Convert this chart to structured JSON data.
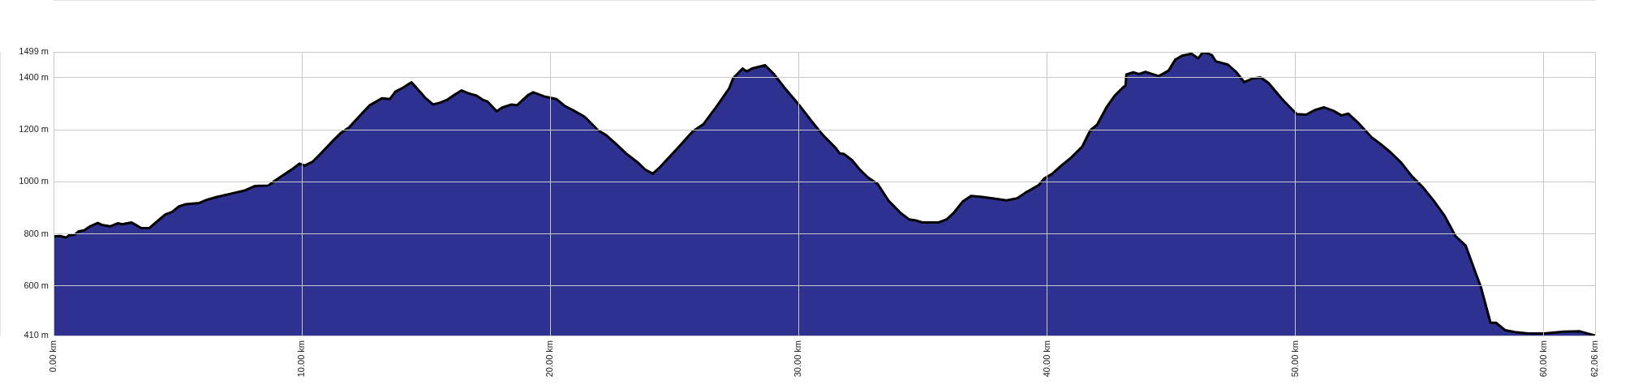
{
  "chart_data": {
    "type": "area",
    "color": "#2e3190",
    "marker": "none",
    "grid": true,
    "xlim": [
      0,
      62.06
    ],
    "ylim": [
      410,
      1499
    ],
    "xticks": [
      {
        "value": 0,
        "label": "0.00 km"
      },
      {
        "value": 10,
        "label": "10.00 km"
      },
      {
        "value": 20,
        "label": "20.00 km"
      },
      {
        "value": 30,
        "label": "30.00 km"
      },
      {
        "value": 40,
        "label": "40.00 km"
      },
      {
        "value": 50,
        "label": "50.00 km"
      },
      {
        "value": 60,
        "label": "60.00 km"
      },
      {
        "value": 62.06,
        "label": "62.06 km"
      }
    ],
    "yticks": [
      {
        "value": 410,
        "label": "410 m"
      },
      {
        "value": 600,
        "label": "600 m"
      },
      {
        "value": 800,
        "label": "800 m"
      },
      {
        "value": 1000,
        "label": "1000 m"
      },
      {
        "value": 1200,
        "label": "1200 m"
      },
      {
        "value": 1400,
        "label": "1400 m"
      },
      {
        "value": 1499,
        "label": "1499 m"
      }
    ],
    "x": [
      0,
      0.25,
      0.52,
      0.63,
      0.85,
      1.01,
      1.23,
      1.45,
      1.78,
      1.94,
      2.27,
      2.6,
      2.76,
      3.14,
      3.3,
      3.52,
      3.85,
      4.12,
      4.5,
      4.78,
      5.05,
      5.32,
      5.87,
      6.14,
      6.58,
      7.12,
      7.67,
      8.1,
      8.65,
      8.92,
      9.63,
      9.9,
      10.11,
      10.44,
      10.71,
      11.25,
      11.58,
      11.91,
      12.34,
      12.73,
      13.22,
      13.54,
      13.76,
      14.08,
      14.41,
      14.63,
      14.96,
      15.28,
      15.56,
      15.83,
      16.15,
      16.43,
      16.7,
      17.03,
      17.3,
      17.46,
      17.84,
      18.06,
      18.44,
      18.66,
      19.1,
      19.31,
      19.75,
      20.24,
      20.57,
      20.95,
      21.38,
      21.92,
      22.25,
      22.62,
      23.05,
      23.5,
      23.82,
      24.12,
      24.42,
      25.08,
      25.73,
      26.16,
      26.71,
      27.2,
      27.36,
      27.74,
      27.9,
      28.12,
      28.45,
      28.64,
      28.99,
      29.42,
      30,
      30.51,
      30.95,
      31.49,
      31.65,
      31.82,
      32.15,
      32.47,
      32.8,
      33.18,
      33.62,
      34.11,
      34.44,
      34.71,
      34.98,
      35.63,
      35.96,
      36.23,
      36.61,
      36.94,
      37.38,
      37.92,
      38.36,
      38.79,
      39.12,
      39.66,
      39.88,
      40.21,
      40.54,
      40.98,
      41.41,
      41.74,
      42.01,
      42.39,
      42.72,
      43.05,
      43.16,
      43.19,
      43.47,
      43.69,
      43.96,
      44.23,
      44.5,
      44.89,
      45.16,
      45.43,
      45.81,
      46.08,
      46.28,
      46.63,
      46.79,
      47.28,
      47.61,
      47.93,
      48.26,
      48.59,
      48.91,
      49.46,
      49.78,
      50.05,
      50.43,
      50.76,
      51.14,
      51.52,
      51.85,
      52.12,
      52.5,
      53.05,
      53.48,
      53.82,
      54.26,
      54.69,
      55.13,
      55.57,
      56,
      56.44,
      56.85,
      57.15,
      57.47,
      57.85,
      58.07,
      58.45,
      58.83,
      59.38,
      60,
      60.8,
      61.45,
      62.06
    ],
    "values": [
      790,
      792,
      786,
      795,
      797,
      810,
      814,
      828,
      842,
      835,
      829,
      841,
      837,
      844,
      835,
      823,
      822,
      844,
      875,
      885,
      906,
      914,
      919,
      930,
      942,
      954,
      966,
      984,
      986,
      1005,
      1050,
      1070,
      1062,
      1078,
      1104,
      1158,
      1189,
      1210,
      1255,
      1294,
      1321,
      1318,
      1346,
      1362,
      1382,
      1359,
      1323,
      1297,
      1304,
      1314,
      1335,
      1351,
      1340,
      1331,
      1314,
      1309,
      1271,
      1285,
      1297,
      1294,
      1333,
      1344,
      1328,
      1318,
      1292,
      1273,
      1250,
      1198,
      1179,
      1148,
      1109,
      1076,
      1047,
      1031,
      1057,
      1125,
      1193,
      1221,
      1292,
      1359,
      1398,
      1435,
      1424,
      1435,
      1443,
      1448,
      1415,
      1362,
      1297,
      1234,
      1182,
      1130,
      1109,
      1107,
      1083,
      1046,
      1016,
      992,
      927,
      880,
      856,
      852,
      844,
      844,
      856,
      880,
      925,
      946,
      942,
      935,
      929,
      937,
      958,
      987,
      1013,
      1031,
      1060,
      1094,
      1135,
      1198,
      1219,
      1286,
      1331,
      1362,
      1370,
      1412,
      1421,
      1414,
      1422,
      1414,
      1406,
      1427,
      1469,
      1484,
      1492,
      1474,
      1499,
      1487,
      1463,
      1450,
      1422,
      1383,
      1396,
      1401,
      1380,
      1318,
      1286,
      1260,
      1258,
      1275,
      1286,
      1273,
      1255,
      1262,
      1229,
      1172,
      1141,
      1114,
      1073,
      1021,
      979,
      927,
      870,
      792,
      755,
      677,
      594,
      459,
      459,
      430,
      423,
      418,
      418,
      425,
      426,
      410
    ]
  }
}
